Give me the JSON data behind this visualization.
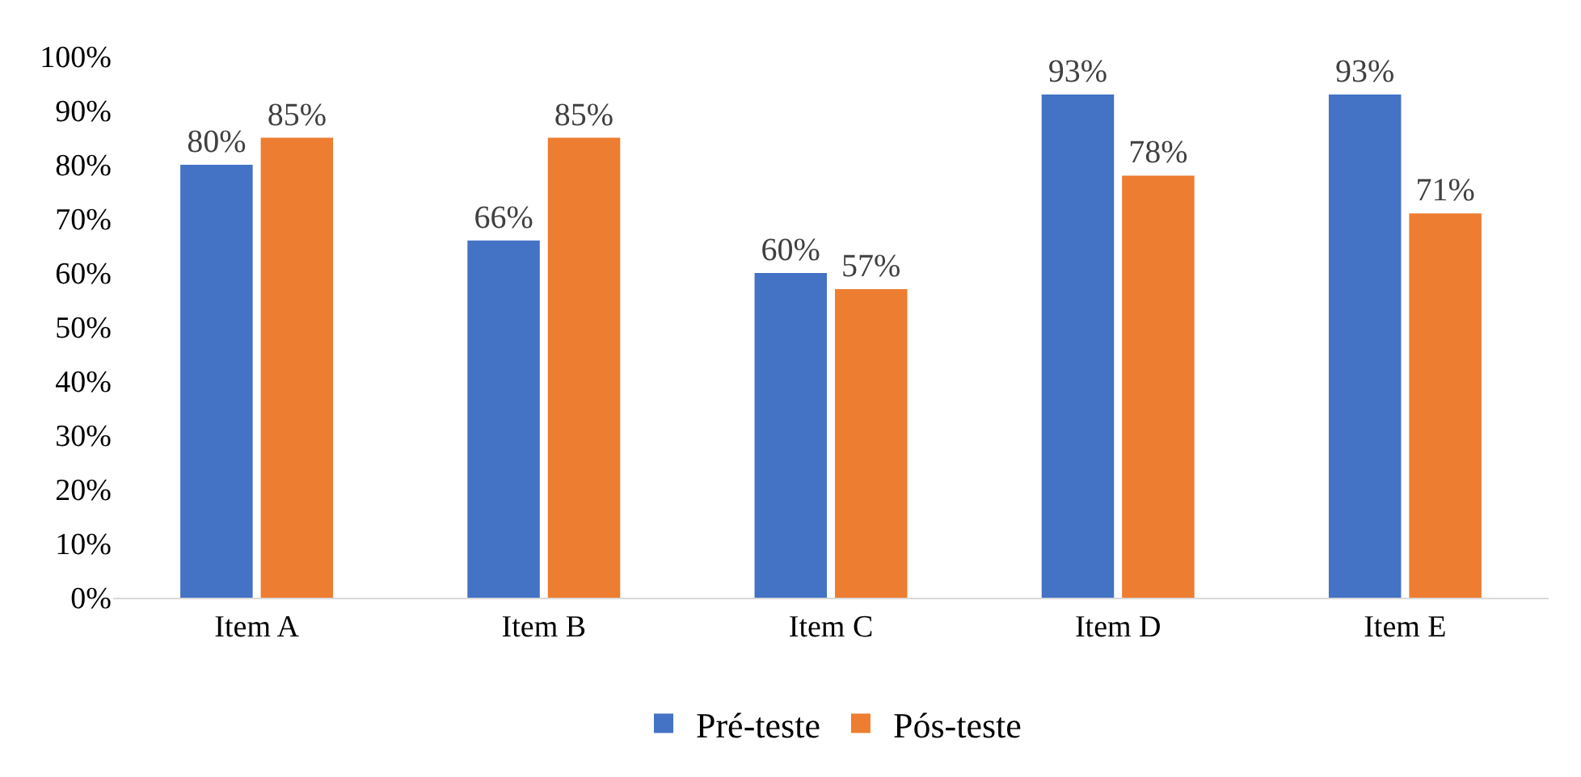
{
  "chart_data": {
    "type": "bar",
    "categories": [
      "Item A",
      "Item B",
      "Item C",
      "Item D",
      "Item E"
    ],
    "series": [
      {
        "name": "Pré-teste",
        "color": "#4472c4",
        "values": [
          80,
          66,
          60,
          93,
          93
        ],
        "value_labels": [
          "80%",
          "66%",
          "60%",
          "93%",
          "93%"
        ]
      },
      {
        "name": "Pós-teste",
        "color": "#ed7d31",
        "values": [
          85,
          85,
          57,
          78,
          71
        ],
        "value_labels": [
          "85%",
          "85%",
          "57%",
          "78%",
          "71%"
        ]
      }
    ],
    "ylim": [
      0,
      100
    ],
    "yticks": [
      {
        "value": 0,
        "label": "0%"
      },
      {
        "value": 10,
        "label": "10%"
      },
      {
        "value": 20,
        "label": "20%"
      },
      {
        "value": 30,
        "label": "30%"
      },
      {
        "value": 40,
        "label": "40%"
      },
      {
        "value": 50,
        "label": "50%"
      },
      {
        "value": 60,
        "label": "60%"
      },
      {
        "value": 70,
        "label": "70%"
      },
      {
        "value": 80,
        "label": "80%"
      },
      {
        "value": 90,
        "label": "90%"
      },
      {
        "value": 100,
        "label": "100%"
      }
    ],
    "legend": "bottom"
  }
}
